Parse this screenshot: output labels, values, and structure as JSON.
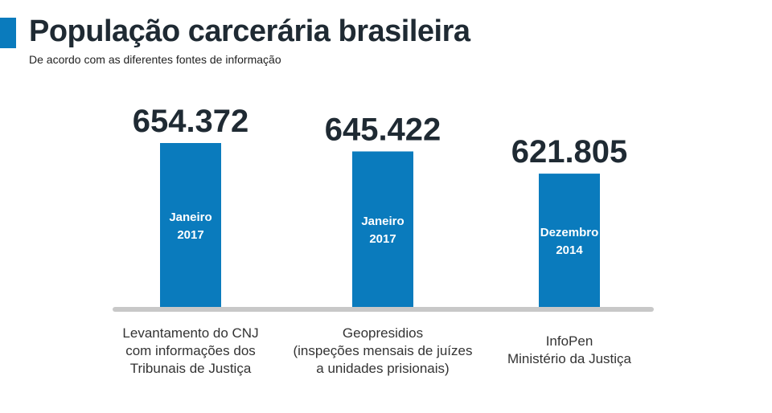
{
  "header": {
    "title": "População carcerária brasileira",
    "subtitle": "De acordo com as diferentes fontes de informação"
  },
  "colors": {
    "accent": "#0a7bbd",
    "bar": "#0a7bbd",
    "baseline": "#c8c8c8",
    "value_text": "#1f2a33",
    "bar_text": "#ffffff"
  },
  "chart_data": {
    "type": "bar",
    "title": "População carcerária brasileira",
    "subtitle": "De acordo com as diferentes fontes de informação",
    "xlabel": "",
    "ylabel": "",
    "categories": [
      "Levantamento do CNJ com informações dos Tribunais de Justiça",
      "Geopresidios (inspeções mensais de juízes a unidades prisionais)",
      "InfoPen Ministério da Justiça"
    ],
    "category_lines": [
      [
        "Levantamento do CNJ",
        "com informações dos",
        "Tribunais de Justiça"
      ],
      [
        "Geopresidios",
        "(inspeções mensais de juízes",
        "a unidades prisionais)"
      ],
      [
        "InfoPen",
        "Ministério da Justiça"
      ]
    ],
    "values": [
      654372,
      645422,
      621805
    ],
    "value_labels": [
      "654.372",
      "645.422",
      "621.805"
    ],
    "bar_labels": [
      [
        "Janeiro",
        "2017"
      ],
      [
        "Janeiro",
        "2017"
      ],
      [
        "Dezembro",
        "2014"
      ]
    ],
    "ylim": [
      480000,
      660000
    ],
    "grid": false,
    "legend": "none"
  }
}
